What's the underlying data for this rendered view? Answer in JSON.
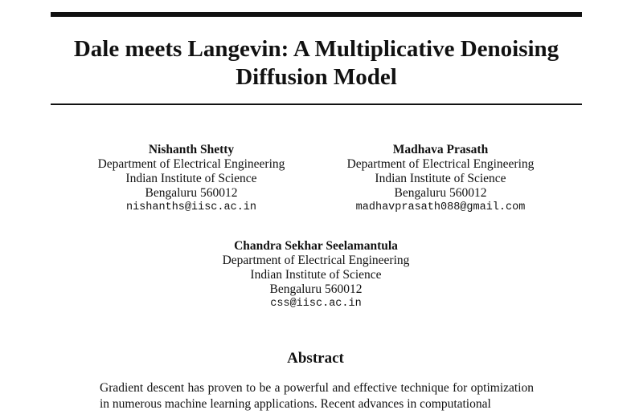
{
  "title": "Dale meets Langevin: A Multiplicative Denoising Diffusion Model",
  "authors": [
    {
      "name": "Nishanth Shetty",
      "dept": "Department of Electrical Engineering",
      "inst": "Indian Institute of Science",
      "city": "Bengaluru 560012",
      "email": "nishanths@iisc.ac.in"
    },
    {
      "name": "Madhava Prasath",
      "dept": "Department of Electrical Engineering",
      "inst": "Indian Institute of Science",
      "city": "Bengaluru 560012",
      "email": "madhavprasath088@gmail.com"
    },
    {
      "name": "Chandra Sekhar Seelamantula",
      "dept": "Department of Electrical Engineering",
      "inst": "Indian Institute of Science",
      "city": "Bengaluru 560012",
      "email": "css@iisc.ac.in"
    }
  ],
  "abstract": {
    "heading": "Abstract",
    "text": "Gradient descent has proven to be a powerful and effective technique for optimization in numerous machine learning applications. Recent advances in computational"
  }
}
